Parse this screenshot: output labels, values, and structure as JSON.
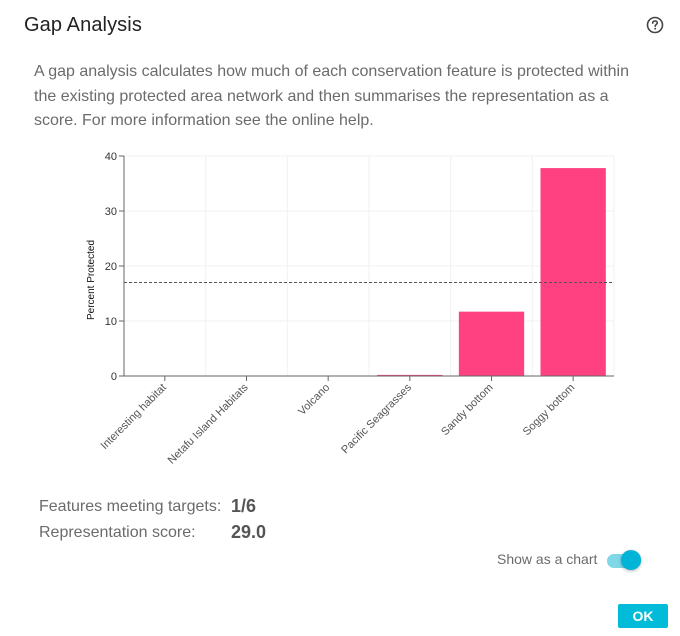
{
  "dialog": {
    "title": "Gap Analysis",
    "help_icon": "help-circle-icon",
    "description": "A gap analysis calculates how much of each conservation feature is protected within the existing protected area network and then summarises the representation as a score. For more information see the online help."
  },
  "chart_data": {
    "type": "bar",
    "categories": [
      "Interesting habitat",
      "Netafu Island Habitats",
      "Volcano",
      "Pacific Seagrasses",
      "Sandy bottom",
      "Soggy bottom"
    ],
    "values": [
      0,
      0,
      0,
      0.2,
      11.7,
      37.8
    ],
    "ylabel": "Percent Protected",
    "ylim": [
      0,
      40
    ],
    "yticks": [
      0,
      10,
      20,
      30,
      40
    ],
    "target_line": 17,
    "bar_color": "#ff4081",
    "target_line_style": "dashed"
  },
  "stats": {
    "features_label": "Features meeting targets:",
    "features_value": "1/6",
    "score_label": "Representation score:",
    "score_value": "29.0"
  },
  "toggle": {
    "label": "Show as a chart",
    "checked": true,
    "accent_color": "#00b4d8"
  },
  "buttons": {
    "ok_label": "OK",
    "ok_color": "#00bcd8"
  }
}
